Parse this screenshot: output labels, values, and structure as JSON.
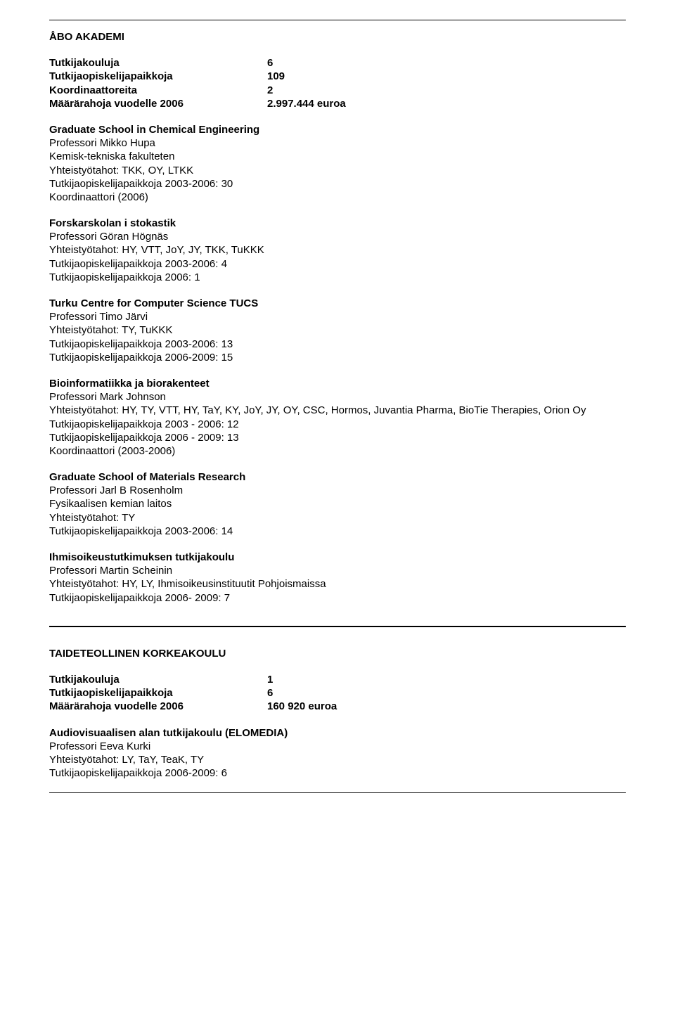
{
  "top": {
    "title": "ÅBO AKADEMI",
    "stats": [
      {
        "label": "Tutkijakouluja",
        "value": "6"
      },
      {
        "label": "Tutkijaopiskelijapaikkoja",
        "value": "109"
      },
      {
        "label": "Koordinaattoreita",
        "value": "2"
      },
      {
        "label": "Määrärahoja vuodelle 2006",
        "value": "2.997.444 euroa"
      }
    ]
  },
  "schools": [
    {
      "name": "Graduate School in Chemical Engineering",
      "lines": [
        "Professori Mikko Hupa",
        "Kemisk-tekniska fakulteten",
        "Yhteistyötahot: TKK,  OY, LTKK",
        "Tutkijaopiskelijapaikkoja 2003-2006: 30",
        "Koordinaattori  (2006)"
      ]
    },
    {
      "name": "Forskarskolan i stokastik",
      "lines": [
        "Professori Göran Högnäs",
        "Yhteistyötahot: HY, VTT, JoY, JY, TKK, TuKKK",
        "Tutkijaopiskelijapaikkoja 2003-2006: 4",
        "Tutkijaopiskelijapaikkoja  2006: 1"
      ]
    },
    {
      "name": "Turku Centre for Computer Science TUCS",
      "lines": [
        "Professori Timo Järvi",
        "Yhteistyötahot:  TY, TuKKK",
        "Tutkijaopiskelijapaikkoja 2003-2006: 13",
        "Tutkijaopiskelijapaikkoja 2006-2009: 15"
      ]
    },
    {
      "name": "Bioinformatiikka ja biorakenteet",
      "lines": [
        "Professori  Mark Johnson",
        "Yhteistyötahot: HY, TY, VTT, HY, TaY, KY, JoY, JY, OY, CSC, Hormos, Juvantia Pharma, BioTie Therapies, Orion Oy",
        "Tutkijaopiskelijapaikkoja 2003 - 2006: 12",
        "Tutkijaopiskelijapaikkoja 2006 - 2009: 13",
        "Koordinaattori  (2003-2006)"
      ]
    },
    {
      "name": "Graduate School of Materials Research",
      "lines": [
        "Professori Jarl B Rosenholm",
        "Fysikaalisen kemian laitos",
        "Yhteistyötahot:  TY",
        "Tutkijaopiskelijapaikkoja 2003-2006: 14"
      ]
    },
    {
      "name": "Ihmisoikeustutkimuksen tutkijakoulu",
      "lines": [
        "Professori Martin Scheinin",
        "Yhteistyötahot: HY, LY, Ihmisoikeusinstituutit Pohjoismaissa",
        "Tutkijaopiskelijapaikkoja 2006- 2009:  7"
      ]
    }
  ],
  "bottom": {
    "title": "TAIDETEOLLINEN KORKEAKOULU",
    "stats": [
      {
        "label": "Tutkijakouluja",
        "value": "1"
      },
      {
        "label": "Tutkijaopiskelijapaikkoja",
        "value": "6"
      },
      {
        "label": "Määrärahoja vuodelle 2006",
        "value": "160 920 euroa"
      }
    ],
    "school": {
      "name": "Audiovisuaalisen alan tutkijakoulu (ELOMEDIA)",
      "lines": [
        "Professori  Eeva Kurki",
        "Yhteistyötahot:  LY, TaY, TeaK, TY",
        "Tutkijaopiskelijapaikkoja  2006-2009: 6"
      ]
    }
  }
}
